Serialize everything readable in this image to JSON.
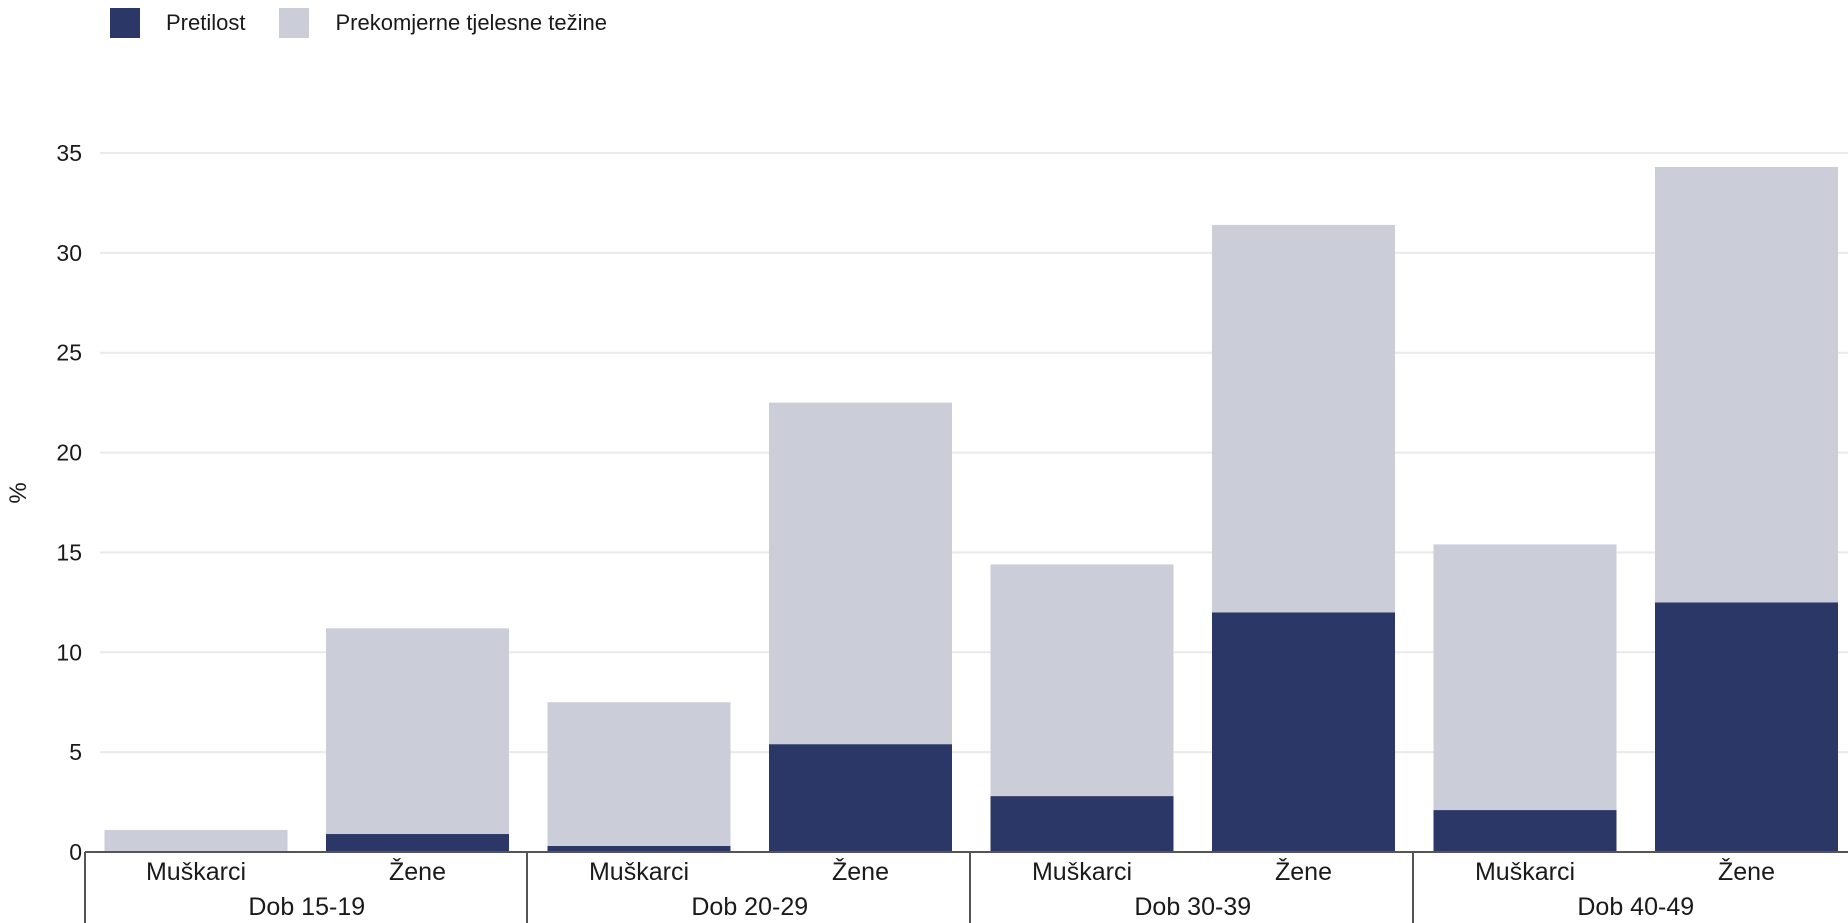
{
  "legend": {
    "items": [
      {
        "label": "Pretilost",
        "color": "#2b3766"
      },
      {
        "label": "Prekomjerne tjelesne težine",
        "color": "#cbcdd9"
      }
    ]
  },
  "chart_data": {
    "type": "bar",
    "stacked": true,
    "ylabel": "%",
    "ylim": [
      0,
      35
    ],
    "yticks": [
      0,
      5,
      10,
      15,
      20,
      25,
      30,
      35
    ],
    "grid": true,
    "legend_position": "top-left",
    "groups": [
      "Dob 15-19",
      "Dob 20-29",
      "Dob 30-39",
      "Dob 40-49"
    ],
    "categories": [
      "Muškarci",
      "Žene",
      "Muškarci",
      "Žene",
      "Muškarci",
      "Žene",
      "Muškarci",
      "Žene"
    ],
    "series": [
      {
        "name": "Pretilost",
        "color": "#2b3766",
        "values": [
          0.0,
          0.9,
          0.3,
          5.4,
          2.8,
          12.0,
          2.1,
          12.5
        ]
      },
      {
        "name": "Prekomjerne tjelesne težine",
        "color": "#cbcdd9",
        "values": [
          1.1,
          10.3,
          7.2,
          17.1,
          11.6,
          19.4,
          13.3,
          21.8
        ]
      }
    ]
  }
}
